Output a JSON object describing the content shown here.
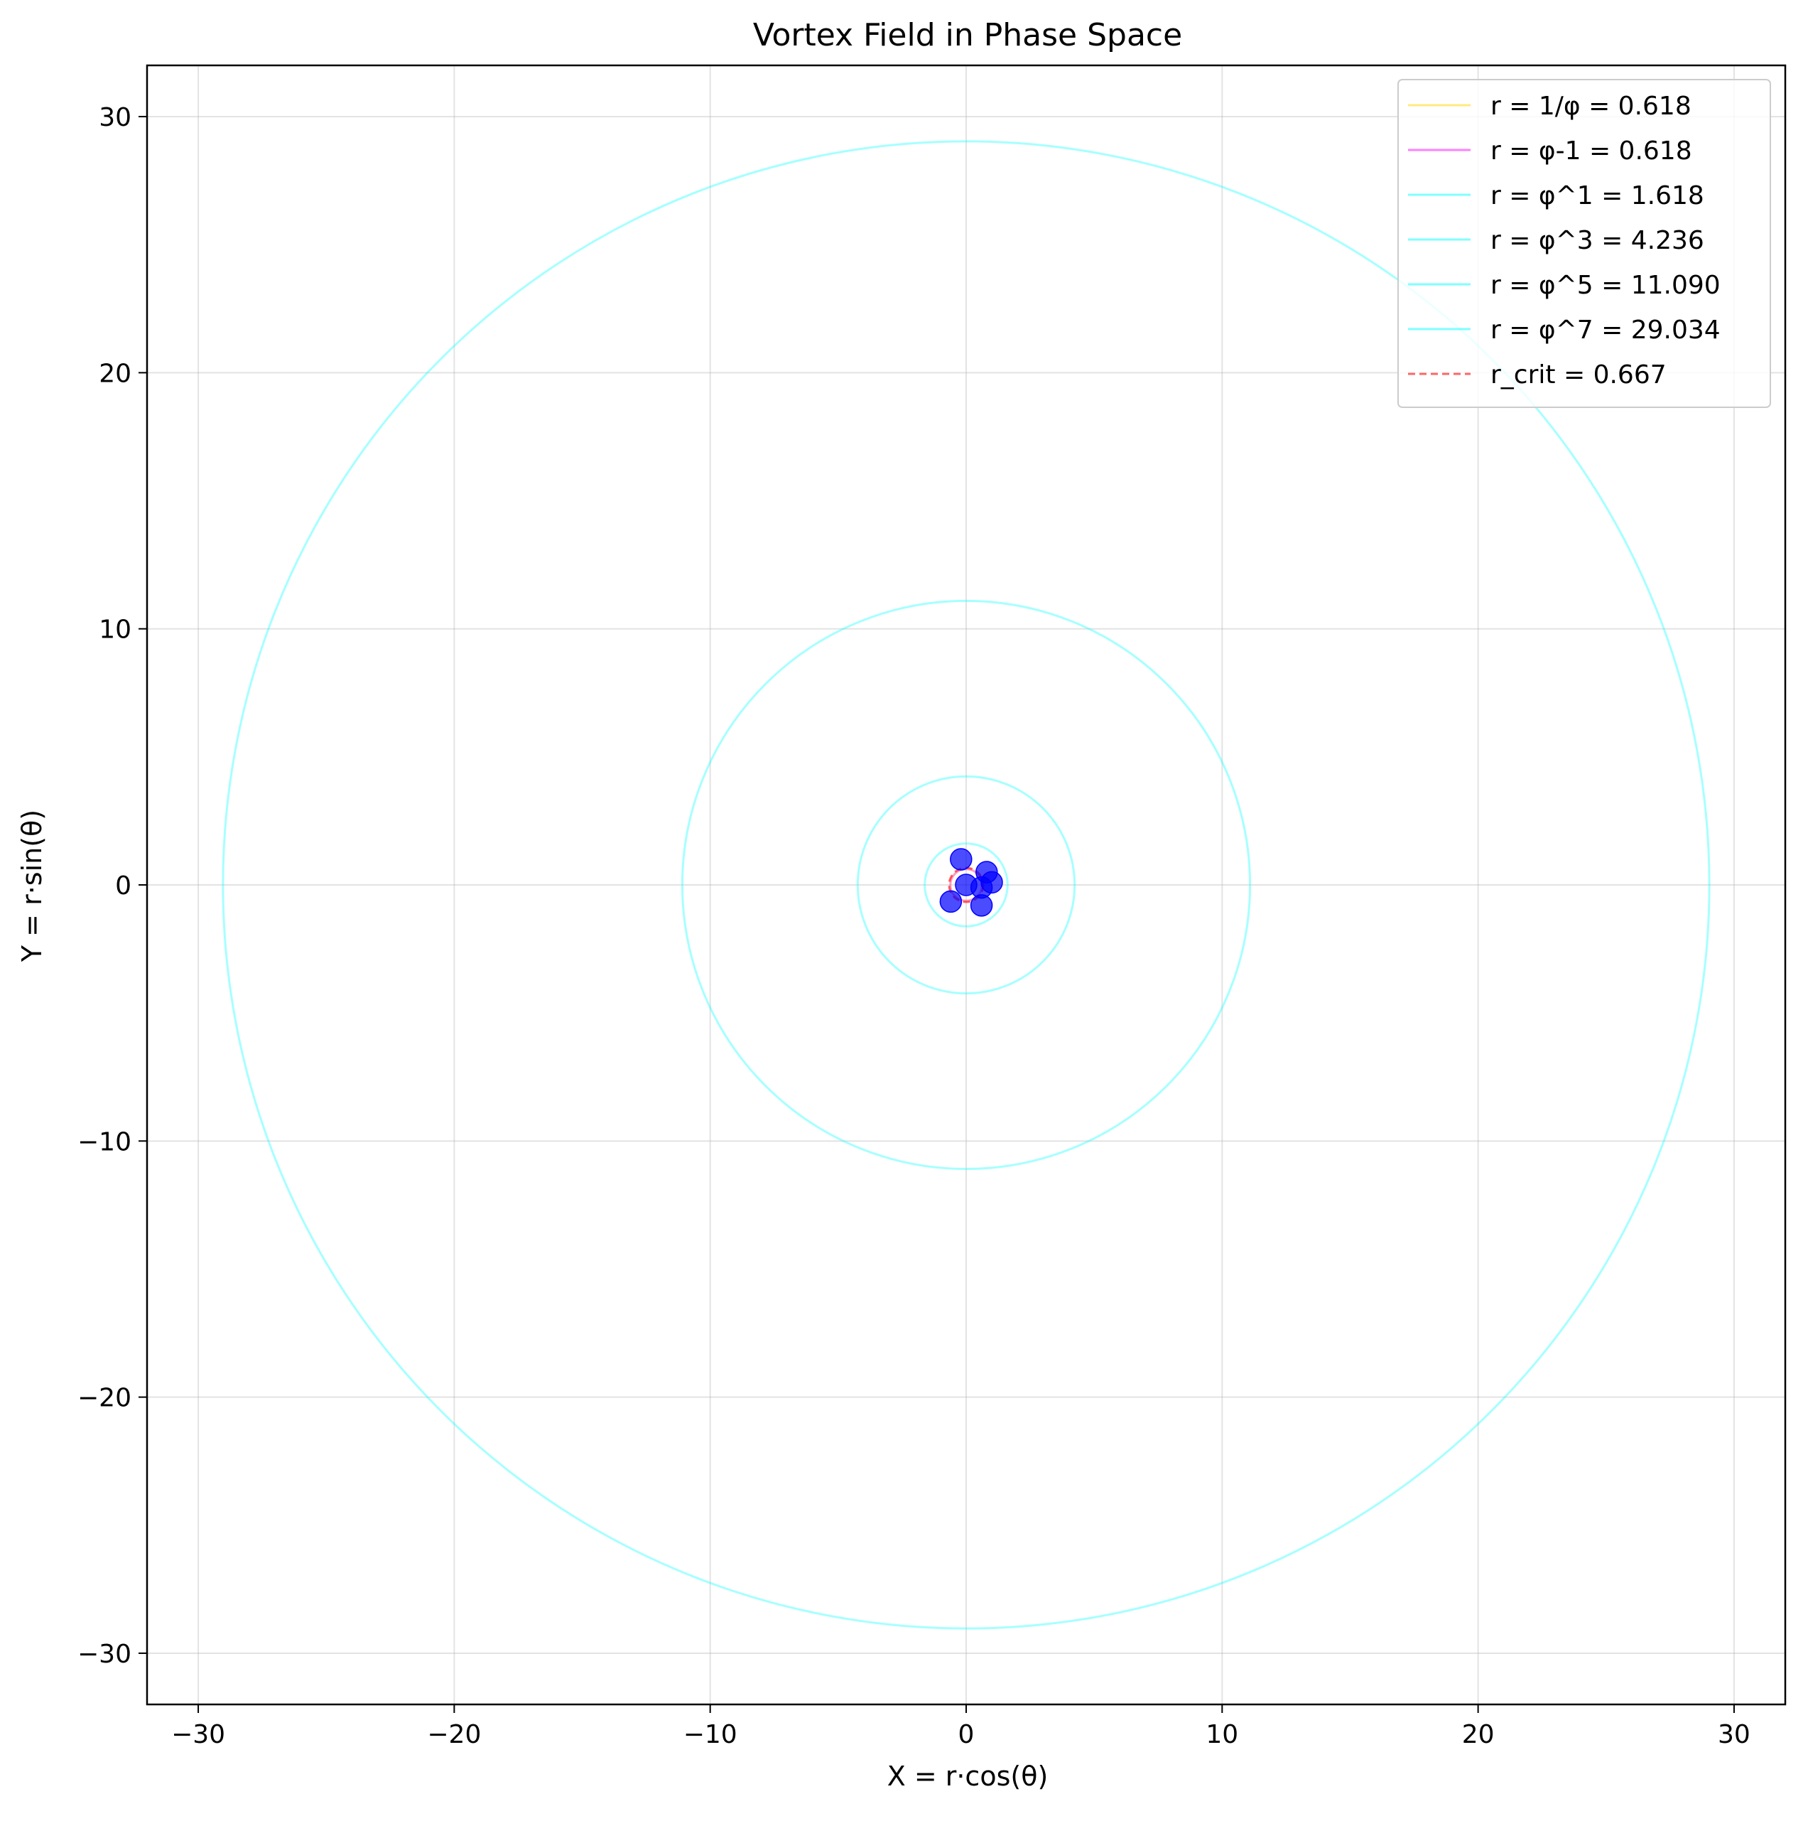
{
  "chart_data": {
    "type": "scatter",
    "title": "Vortex Field in Phase Space",
    "xlabel": "X = r·cos(θ)",
    "ylabel": "Y = r·sin(θ)",
    "xlim": [
      -32,
      32
    ],
    "ylim": [
      -32,
      32
    ],
    "xticks": [
      -30,
      -20,
      -10,
      0,
      10,
      20,
      30
    ],
    "yticks": [
      -30,
      -20,
      -10,
      0,
      10,
      20,
      30
    ],
    "xtick_labels": [
      "−30",
      "−20",
      "−10",
      "0",
      "10",
      "20",
      "30"
    ],
    "ytick_labels": [
      "−30",
      "−20",
      "−10",
      "0",
      "10",
      "20",
      "30"
    ],
    "grid": true,
    "legend_position": "top-right",
    "circles": [
      {
        "label": "r = 1/φ = 0.618",
        "radius": 0.618,
        "color": "#ffd700",
        "dash": false
      },
      {
        "label": "r = φ-1 = 0.618",
        "radius": 0.618,
        "color": "#ff00ff",
        "dash": false
      },
      {
        "label": "r = φ^1 = 1.618",
        "radius": 1.618,
        "color": "#00ffff",
        "dash": false
      },
      {
        "label": "r = φ^3 = 4.236",
        "radius": 4.236,
        "color": "#00ffff",
        "dash": false
      },
      {
        "label": "r = φ^5 = 11.090",
        "radius": 11.09,
        "color": "#00ffff",
        "dash": false
      },
      {
        "label": "r = φ^7 = 29.034",
        "radius": 29.034,
        "color": "#00ffff",
        "dash": false
      },
      {
        "label": "r_crit = 0.667",
        "radius": 0.667,
        "color": "#ff0000",
        "dash": true
      }
    ],
    "points": [
      {
        "x": -0.2,
        "y": 1.0
      },
      {
        "x": 0.8,
        "y": 0.5
      },
      {
        "x": 1.0,
        "y": 0.1
      },
      {
        "x": 0.6,
        "y": -0.1
      },
      {
        "x": 0.6,
        "y": -0.8
      },
      {
        "x": -0.6,
        "y": -0.65
      },
      {
        "x": 0.0,
        "y": 0.0
      }
    ],
    "point_color": "#0000ff"
  }
}
